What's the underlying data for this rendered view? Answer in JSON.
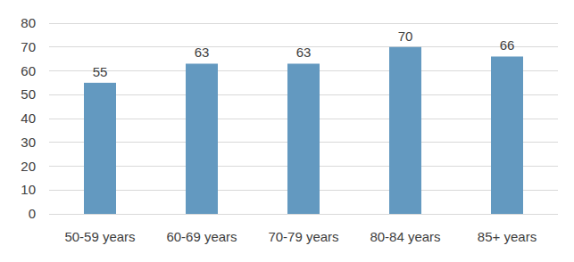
{
  "chart_data": {
    "type": "bar",
    "categories": [
      "50-59 years",
      "60-69 years",
      "70-79 years",
      "80-84 years",
      "85+ years"
    ],
    "values": [
      55,
      63,
      63,
      70,
      66
    ],
    "color": "#6399c0",
    "ylim": [
      0,
      80
    ],
    "yticks": [
      0,
      10,
      20,
      30,
      40,
      50,
      60,
      70,
      80
    ],
    "grid": true,
    "data_labels": true
  }
}
